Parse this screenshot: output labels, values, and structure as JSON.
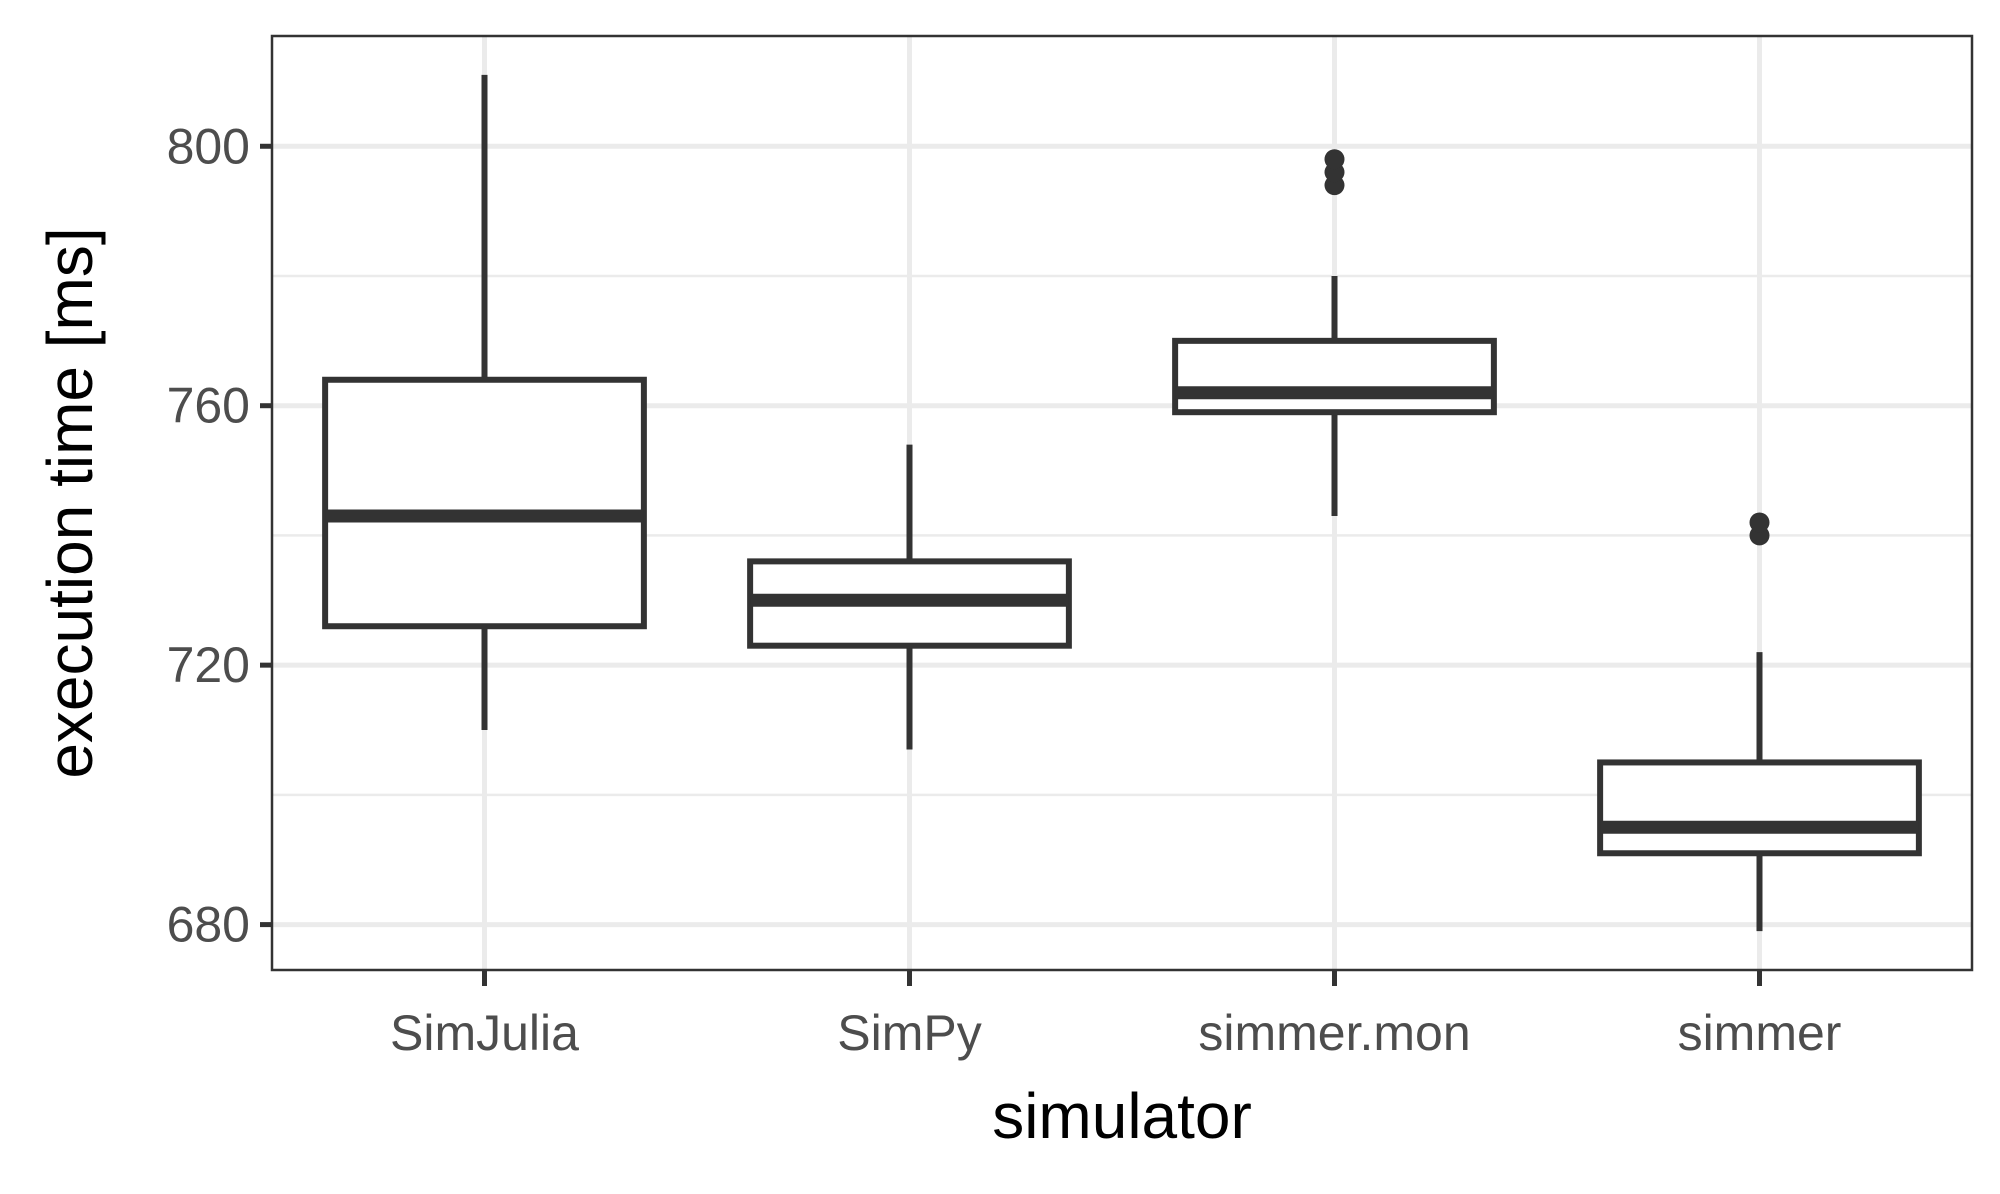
{
  "chart_data": {
    "type": "box",
    "xlabel": "simulator",
    "ylabel": "execution time [ms]",
    "ylim": [
      673,
      817
    ],
    "yticks": [
      680,
      720,
      760,
      800
    ],
    "grid": true,
    "categories": [
      "SimJulia",
      "SimPy",
      "simmer.mon",
      "simmer"
    ],
    "boxes": [
      {
        "category": "SimJulia",
        "whisker_low": 710,
        "q1": 726,
        "median": 743,
        "q3": 764,
        "whisker_high": 811,
        "outliers": []
      },
      {
        "category": "SimPy",
        "whisker_low": 707,
        "q1": 723,
        "median": 730,
        "q3": 736,
        "whisker_high": 754,
        "outliers": []
      },
      {
        "category": "simmer.mon",
        "whisker_low": 743,
        "q1": 759,
        "median": 762,
        "q3": 770,
        "whisker_high": 780,
        "outliers": [
          794,
          796,
          798
        ]
      },
      {
        "category": "simmer",
        "whisker_low": 679,
        "q1": 691,
        "median": 695,
        "q3": 705,
        "whisker_high": 722,
        "outliers": [
          740,
          742
        ]
      }
    ],
    "colors": {
      "stroke": "#333333",
      "grid": "#ebebeb",
      "panel_border": "#333333",
      "tick_text": "#4d4d4d"
    }
  }
}
